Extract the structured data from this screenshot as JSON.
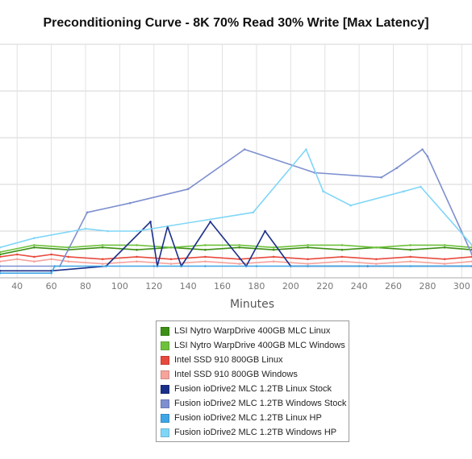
{
  "chart_data": {
    "type": "line",
    "title": "Preconditioning Curve - 8K 70% Read 30% Write [Max Latency]",
    "xlabel": "Minutes",
    "ylabel": "",
    "xlim": [
      30,
      306
    ],
    "x_ticks": [
      40,
      60,
      80,
      100,
      120,
      140,
      160,
      180,
      200,
      220,
      240,
      260,
      280,
      300
    ],
    "grid": true,
    "legend_position": "bottom-center",
    "series": [
      {
        "name": "LSI Nytro WarpDrive 400GB MLC Linux",
        "color": "#3d8f15",
        "x": [
          30,
          50,
          70,
          90,
          110,
          130,
          150,
          170,
          190,
          210,
          230,
          250,
          270,
          290,
          306
        ],
        "values": [
          0.1,
          0.13,
          0.12,
          0.13,
          0.12,
          0.13,
          0.12,
          0.13,
          0.12,
          0.13,
          0.12,
          0.13,
          0.12,
          0.13,
          0.12
        ]
      },
      {
        "name": "LSI Nytro WarpDrive 400GB MLC Windows",
        "color": "#6dc23c",
        "x": [
          30,
          50,
          70,
          90,
          110,
          130,
          150,
          170,
          190,
          210,
          230,
          250,
          270,
          290,
          306
        ],
        "values": [
          0.11,
          0.14,
          0.13,
          0.14,
          0.14,
          0.13,
          0.14,
          0.14,
          0.13,
          0.14,
          0.14,
          0.13,
          0.14,
          0.14,
          0.13
        ]
      },
      {
        "name": "Intel SSD 910 800GB Linux",
        "color": "#e8493c",
        "x": [
          30,
          40,
          50,
          60,
          70,
          90,
          110,
          130,
          150,
          170,
          190,
          210,
          230,
          250,
          270,
          290,
          306
        ],
        "values": [
          0.09,
          0.1,
          0.09,
          0.1,
          0.09,
          0.08,
          0.09,
          0.08,
          0.09,
          0.08,
          0.09,
          0.08,
          0.09,
          0.08,
          0.09,
          0.08,
          0.09
        ]
      },
      {
        "name": "Intel SSD 910 800GB Windows",
        "color": "#f5a39b",
        "x": [
          30,
          40,
          50,
          60,
          70,
          90,
          110,
          130,
          150,
          170,
          190,
          210,
          230,
          250,
          270,
          290,
          306
        ],
        "values": [
          0.07,
          0.08,
          0.07,
          0.08,
          0.07,
          0.06,
          0.07,
          0.06,
          0.07,
          0.06,
          0.07,
          0.06,
          0.07,
          0.06,
          0.07,
          0.06,
          0.07
        ]
      },
      {
        "name": "Fusion ioDrive2 MLC 1.2TB Linux Stock",
        "color": "#1a2f8a",
        "x": [
          30,
          60,
          92,
          118,
          122,
          128,
          136,
          153,
          174,
          185,
          200,
          210,
          245,
          306
        ],
        "values": [
          0.03,
          0.03,
          0.05,
          0.24,
          0.05,
          0.22,
          0.05,
          0.24,
          0.05,
          0.2,
          0.05,
          0.05,
          0.05,
          0.05
        ]
      },
      {
        "name": "Fusion ioDrive2 MLC 1.2TB Windows Stock",
        "color": "#7d8fcf",
        "x": [
          30,
          65,
          81,
          106,
          140,
          173,
          214,
          253,
          262,
          277,
          280,
          306
        ],
        "values": [
          0.05,
          0.05,
          0.28,
          0.32,
          0.38,
          0.55,
          0.45,
          0.43,
          0.47,
          0.55,
          0.52,
          0.1
        ]
      },
      {
        "name": "Fusion ioDrive2 MLC 1.2TB Linux HP",
        "color": "#3fa6e6",
        "x": [
          30,
          60,
          62,
          92,
          120,
          150,
          180,
          210,
          240,
          270,
          306
        ],
        "values": [
          0.02,
          0.02,
          0.05,
          0.05,
          0.05,
          0.05,
          0.05,
          0.05,
          0.05,
          0.05,
          0.05
        ]
      },
      {
        "name": "Fusion ioDrive2 MLC 1.2TB Windows HP",
        "color": "#7fd6f7",
        "x": [
          30,
          50,
          80,
          93,
          110,
          178,
          209,
          219,
          235,
          266,
          276,
          306
        ],
        "values": [
          0.13,
          0.17,
          0.21,
          0.2,
          0.2,
          0.28,
          0.55,
          0.37,
          0.31,
          0.37,
          0.39,
          0.14
        ]
      }
    ]
  }
}
